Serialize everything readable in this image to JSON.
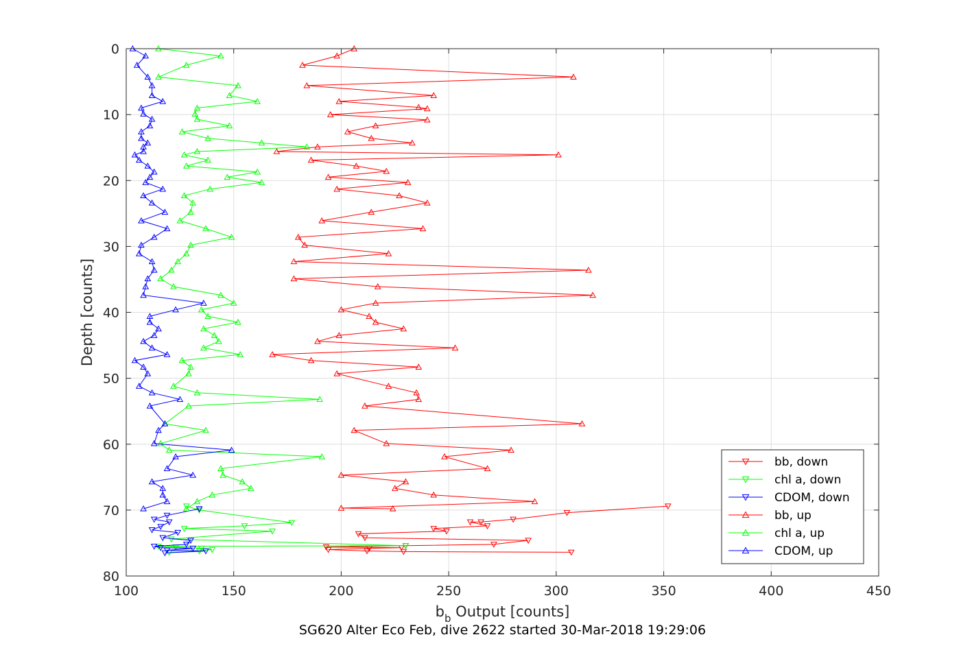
{
  "chart_data": {
    "type": "line",
    "title": "",
    "xlabel": {
      "base": "b",
      "subscript": "b",
      "rest": " Output [counts]"
    },
    "ylabel": "Depth [counts]",
    "caption": "SG620 Alter Eco Feb, dive 2622 started 30-Mar-2018 19:29:06",
    "xlim": [
      100,
      450
    ],
    "ylim": [
      0,
      80
    ],
    "y_reversed": true,
    "xticks": [
      100,
      150,
      200,
      250,
      300,
      350,
      400,
      450
    ],
    "yticks": [
      0,
      10,
      20,
      30,
      40,
      50,
      60,
      70,
      80
    ],
    "grid": true,
    "legend_position": "bottom-right",
    "series": [
      {
        "name": "bb, down",
        "color": "#ff0000",
        "marker": "triangle-down",
        "points": [
          [
            352,
            69.4
          ],
          [
            305,
            70.4
          ],
          [
            280,
            71.4
          ],
          [
            265,
            71.8
          ],
          [
            260,
            71.8
          ],
          [
            268,
            72.4
          ],
          [
            243,
            72.8
          ],
          [
            249,
            73.2
          ],
          [
            208,
            73.6
          ],
          [
            211,
            74.2
          ],
          [
            287,
            74.6
          ],
          [
            271,
            75.2
          ],
          [
            230,
            75.4
          ],
          [
            193,
            75.6
          ],
          [
            228,
            75.7
          ],
          [
            213,
            75.8
          ],
          [
            194,
            76
          ],
          [
            212,
            76.2
          ],
          [
            229,
            76.3
          ],
          [
            307,
            76.4
          ]
        ]
      },
      {
        "name": "chl a, down",
        "color": "#00ff00",
        "marker": "triangle-down",
        "points": [
          [
            128,
            69.4
          ],
          [
            134,
            70
          ],
          [
            177,
            71.9
          ],
          [
            155,
            72.4
          ],
          [
            127,
            72.8
          ],
          [
            168,
            73.2
          ],
          [
            121,
            74.4
          ],
          [
            230,
            75.4
          ],
          [
            115,
            75.5
          ],
          [
            123,
            75.6
          ],
          [
            135,
            75.8
          ],
          [
            140,
            76
          ],
          [
            134,
            76.2
          ],
          [
            120,
            76.4
          ]
        ]
      },
      {
        "name": "CDOM, down",
        "color": "#0000ff",
        "marker": "triangle-down",
        "points": [
          [
            134,
            69.8
          ],
          [
            119,
            70.8
          ],
          [
            113,
            71.4
          ],
          [
            120,
            71.8
          ],
          [
            116,
            72.5
          ],
          [
            112,
            73.0
          ],
          [
            124,
            73.4
          ],
          [
            117,
            74.2
          ],
          [
            130,
            74.6
          ],
          [
            128,
            75.2
          ],
          [
            113,
            75.5
          ],
          [
            116,
            75.7
          ],
          [
            131,
            75.8
          ],
          [
            119,
            76.1
          ],
          [
            137,
            76.2
          ],
          [
            118,
            76.5
          ]
        ]
      },
      {
        "name": "bb, up",
        "color": "#ff0000",
        "marker": "triangle-up",
        "points": [
          [
            206,
            0
          ],
          [
            198,
            1.1
          ],
          [
            182,
            2.5
          ],
          [
            308,
            4.3
          ],
          [
            184,
            5.6
          ],
          [
            243,
            7.1
          ],
          [
            199,
            8
          ],
          [
            236,
            8.9
          ],
          [
            240,
            9.1
          ],
          [
            195,
            10
          ],
          [
            240,
            10.8
          ],
          [
            216,
            11.7
          ],
          [
            203,
            12.6
          ],
          [
            214,
            13.6
          ],
          [
            233,
            14.3
          ],
          [
            189,
            14.9
          ],
          [
            170,
            15.6
          ],
          [
            301,
            16.1
          ],
          [
            186,
            16.9
          ],
          [
            207,
            17.8
          ],
          [
            221,
            18.6
          ],
          [
            194,
            19.5
          ],
          [
            231,
            20.3
          ],
          [
            198,
            21.3
          ],
          [
            227,
            22.3
          ],
          [
            240,
            23.4
          ],
          [
            214,
            24.8
          ],
          [
            191,
            26.1
          ],
          [
            238,
            27.3
          ],
          [
            180,
            28.6
          ],
          [
            183,
            29.8
          ],
          [
            222,
            31.1
          ],
          [
            178,
            32.3
          ],
          [
            315,
            33.6
          ],
          [
            178,
            34.9
          ],
          [
            217,
            36.1
          ],
          [
            317,
            37.4
          ],
          [
            216,
            38.6
          ],
          [
            200,
            39.6
          ],
          [
            213,
            40.6
          ],
          [
            216,
            41.5
          ],
          [
            229,
            42.5
          ],
          [
            199,
            43.5
          ],
          [
            189,
            44.4
          ],
          [
            253,
            45.4
          ],
          [
            168,
            46.4
          ],
          [
            186,
            47.3
          ],
          [
            236,
            48.3
          ],
          [
            198,
            49.3
          ],
          [
            222,
            51.2
          ],
          [
            235,
            52.2
          ],
          [
            236,
            53.2
          ],
          [
            211,
            54.2
          ],
          [
            312,
            56.9
          ],
          [
            206,
            57.9
          ],
          [
            221,
            59.9
          ],
          [
            279,
            60.9
          ],
          [
            248,
            61.9
          ],
          [
            268,
            63.7
          ],
          [
            200,
            64.7
          ],
          [
            230,
            65.7
          ],
          [
            225,
            66.7
          ],
          [
            243,
            67.7
          ],
          [
            290,
            68.7
          ],
          [
            200,
            69.7
          ],
          [
            224,
            69.8
          ]
        ]
      },
      {
        "name": "chl a, up",
        "color": "#00ff00",
        "marker": "triangle-up",
        "points": [
          [
            115,
            0
          ],
          [
            144,
            1.1
          ],
          [
            128,
            2.5
          ],
          [
            115,
            4.3
          ],
          [
            152,
            5.6
          ],
          [
            148,
            7.1
          ],
          [
            161,
            8
          ],
          [
            133,
            9
          ],
          [
            132,
            9.9
          ],
          [
            133,
            10.7
          ],
          [
            148,
            11.7
          ],
          [
            126,
            12.6
          ],
          [
            138,
            13.6
          ],
          [
            163,
            14.3
          ],
          [
            184,
            14.9
          ],
          [
            133,
            15.6
          ],
          [
            127,
            16.1
          ],
          [
            138,
            16.9
          ],
          [
            128,
            17.8
          ],
          [
            161,
            18.7
          ],
          [
            147,
            19.5
          ],
          [
            163,
            20.3
          ],
          [
            139,
            21.3
          ],
          [
            127,
            22.3
          ],
          [
            131,
            23.4
          ],
          [
            130,
            24.8
          ],
          [
            125,
            26.1
          ],
          [
            137,
            27.3
          ],
          [
            149,
            28.6
          ],
          [
            130,
            29.8
          ],
          [
            128,
            31.1
          ],
          [
            124,
            32.3
          ],
          [
            121,
            33.6
          ],
          [
            116,
            34.9
          ],
          [
            122,
            36.1
          ],
          [
            144,
            37.4
          ],
          [
            150,
            38.6
          ],
          [
            135,
            39.6
          ],
          [
            138,
            40.6
          ],
          [
            152,
            41.5
          ],
          [
            136,
            42.5
          ],
          [
            141,
            43.5
          ],
          [
            143,
            44.4
          ],
          [
            136,
            45.4
          ],
          [
            153,
            46.4
          ],
          [
            126,
            47.3
          ],
          [
            130,
            48.3
          ],
          [
            129,
            49.3
          ],
          [
            122,
            51.2
          ],
          [
            133,
            52.2
          ],
          [
            190,
            53.2
          ],
          [
            129,
            54.2
          ],
          [
            118,
            56.9
          ],
          [
            137,
            57.9
          ],
          [
            116,
            59.9
          ],
          [
            120,
            60.9
          ],
          [
            191,
            61.9
          ],
          [
            144,
            63.7
          ],
          [
            145,
            64.7
          ],
          [
            154,
            65.7
          ],
          [
            158,
            66.7
          ],
          [
            140,
            67.7
          ],
          [
            133,
            68.7
          ],
          [
            128,
            69.8
          ]
        ]
      },
      {
        "name": "CDOM, up",
        "color": "#0000ff",
        "marker": "triangle-up",
        "points": [
          [
            103,
            0
          ],
          [
            109,
            1.1
          ],
          [
            105,
            2.5
          ],
          [
            110,
            4.3
          ],
          [
            112,
            5.6
          ],
          [
            112,
            7.1
          ],
          [
            117,
            8
          ],
          [
            107,
            9
          ],
          [
            108,
            9.9
          ],
          [
            112,
            10.7
          ],
          [
            111,
            11.7
          ],
          [
            107,
            12.6
          ],
          [
            107,
            13.6
          ],
          [
            110,
            14.3
          ],
          [
            108,
            14.9
          ],
          [
            108,
            15.6
          ],
          [
            104,
            16.1
          ],
          [
            106,
            16.9
          ],
          [
            110,
            17.8
          ],
          [
            113,
            18.7
          ],
          [
            111,
            19.5
          ],
          [
            109,
            20.3
          ],
          [
            117,
            21.3
          ],
          [
            108,
            22.3
          ],
          [
            112,
            23.4
          ],
          [
            118,
            24.8
          ],
          [
            107,
            26.1
          ],
          [
            119,
            27.3
          ],
          [
            113,
            28.6
          ],
          [
            107,
            29.8
          ],
          [
            106,
            31.1
          ],
          [
            112,
            32.3
          ],
          [
            113,
            33.6
          ],
          [
            110,
            34.9
          ],
          [
            109,
            36.1
          ],
          [
            108,
            37.4
          ],
          [
            136,
            38.6
          ],
          [
            123,
            39.6
          ],
          [
            111,
            40.6
          ],
          [
            111,
            41.5
          ],
          [
            115,
            42.5
          ],
          [
            113,
            43.5
          ],
          [
            108,
            44.4
          ],
          [
            112,
            45.4
          ],
          [
            119,
            46.4
          ],
          [
            104,
            47.3
          ],
          [
            108,
            48.3
          ],
          [
            110,
            49.3
          ],
          [
            106,
            51.2
          ],
          [
            112,
            52.2
          ],
          [
            125,
            53.2
          ],
          [
            111,
            54.2
          ],
          [
            118,
            56.9
          ],
          [
            115,
            57.9
          ],
          [
            113,
            59.9
          ],
          [
            149,
            60.9
          ],
          [
            123,
            61.9
          ],
          [
            119,
            63.7
          ],
          [
            131,
            64.7
          ],
          [
            112,
            65.7
          ],
          [
            117,
            66.7
          ],
          [
            117,
            67.7
          ],
          [
            119,
            68.7
          ],
          [
            108,
            69.8
          ]
        ]
      }
    ]
  }
}
